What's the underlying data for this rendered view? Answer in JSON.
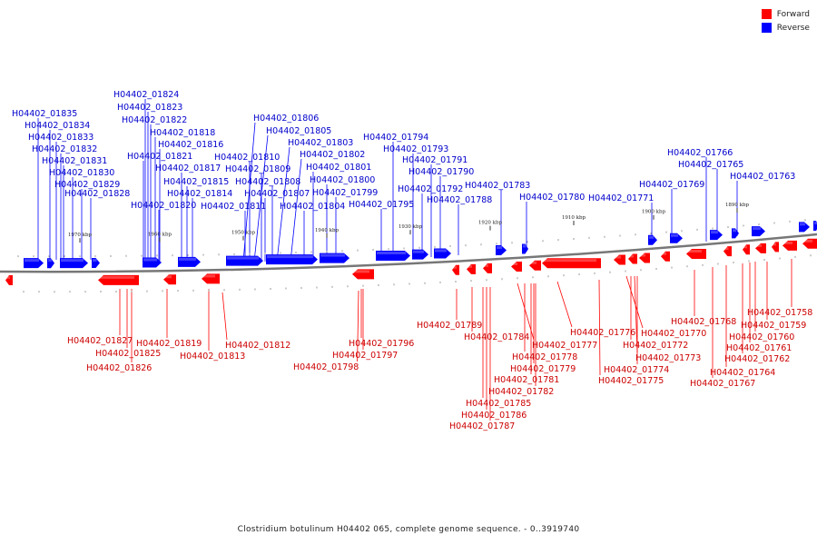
{
  "legend": [
    {
      "label": "Forward",
      "color": "#ff0000"
    },
    {
      "label": "Reverse",
      "color": "#0000ff"
    }
  ],
  "footer": "Clostridium botulinum H04402 065, complete genome sequence. - 0..3919740",
  "colors": {
    "forward": "#ff0000",
    "reverse": "#0000ff",
    "forward_label": "#cc0000",
    "reverse_label": "#0000cc",
    "backbone": "#777777"
  },
  "ticks": [
    "1970 kbp",
    "1960 kbp",
    "1950 kbp",
    "1940 kbp",
    "1930 kbp",
    "1920 kbp",
    "1910 kbp",
    "1900 kbp",
    "1890 kbp"
  ],
  "reverse_genes": [
    "H04402_01835",
    "H04402_01834",
    "H04402_01833",
    "H04402_01832",
    "H04402_01831",
    "H04402_01830",
    "H04402_01829",
    "H04402_01828",
    "H04402_01824",
    "H04402_01823",
    "H04402_01822",
    "H04402_01818",
    "H04402_01816",
    "H04402_01821",
    "H04402_01817",
    "H04402_01815",
    "H04402_01814",
    "H04402_01820",
    "H04402_01806",
    "H04402_01805",
    "H04402_01803",
    "H04402_01802",
    "H04402_01810",
    "H04402_01809",
    "H04402_01801",
    "H04402_01808",
    "H04402_01800",
    "H04402_01807",
    "H04402_01799",
    "H04402_01811",
    "H04402_01804",
    "H04402_01794",
    "H04402_01793",
    "H04402_01791",
    "H04402_01790",
    "H04402_01792",
    "H04402_01795",
    "H04402_01788",
    "H04402_01783",
    "H04402_01780",
    "H04402_01771",
    "H04402_01766",
    "H04402_01765",
    "H04402_01769",
    "H04402_01763"
  ],
  "forward_genes": [
    "H04402_01827",
    "H04402_01825",
    "H04402_01826",
    "H04402_01819",
    "H04402_01813",
    "H04402_01812",
    "H04402_01796",
    "H04402_01797",
    "H04402_01798",
    "H04402_01789",
    "H04402_01784",
    "H04402_01777",
    "H04402_01778",
    "H04402_01779",
    "H04402_01781",
    "H04402_01782",
    "H04402_01785",
    "H04402_01786",
    "H04402_01787",
    "H04402_01776",
    "H04402_01770",
    "H04402_01772",
    "H04402_01773",
    "H04402_01774",
    "H04402_01775",
    "H04402_01768",
    "H04402_01767",
    "H04402_01764",
    "H04402_01762",
    "H04402_01761",
    "H04402_01760",
    "H04402_01759",
    "H04402_01758"
  ]
}
